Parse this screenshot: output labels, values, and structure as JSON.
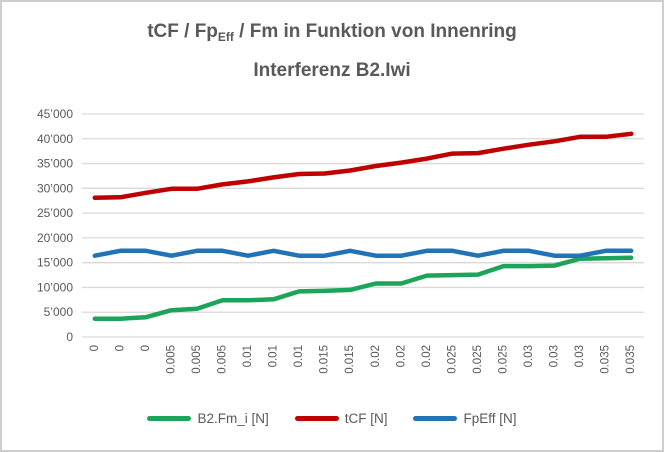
{
  "title": {
    "line1_prefix": "tCF / Fp",
    "line1_subscript": "Eff",
    "line1_suffix": " / Fm in Funktion von Innenring",
    "line2": "Interferenz B2.Iwi"
  },
  "colors": {
    "title_text": "#595959",
    "axis_text": "#595959",
    "gridline": "#d9d9d9",
    "frame_border": "#cdcdcd",
    "background": "#ffffff"
  },
  "chart_data": {
    "type": "line",
    "title": "tCF / FpEff / Fm in Funktion von Innenring Interferenz B2.Iwi",
    "xlabel": "",
    "ylabel": "",
    "ylim": [
      0,
      45000
    ],
    "grid": "horizontal",
    "legend_position": "bottom",
    "y_ticks": {
      "values": [
        0,
        5000,
        10000,
        15000,
        20000,
        25000,
        30000,
        35000,
        40000,
        45000
      ],
      "labels": [
        "0",
        "5’000",
        "10’000",
        "15’000",
        "20’000",
        "25’000",
        "30’000",
        "35’000",
        "40’000",
        "45’000"
      ]
    },
    "categories": [
      "0",
      "0",
      "0",
      "0.005",
      "0.005",
      "0.005",
      "0.01",
      "0.01",
      "0.01",
      "0.015",
      "0.015",
      "0.02",
      "0.02",
      "0.02",
      "0.025",
      "0.025",
      "0.025",
      "0.03",
      "0.03",
      "0.03",
      "0.035",
      "0.035"
    ],
    "series": [
      {
        "key": "b2-fm-i",
        "name": "B2.Fm_i [N]",
        "color": "#1ba45a",
        "values": [
          3700,
          3700,
          4000,
          5400,
          5700,
          7400,
          7400,
          7600,
          9200,
          9300,
          9500,
          10800,
          10800,
          12400,
          12500,
          12600,
          14300,
          14300,
          14400,
          15800,
          15900,
          16000
        ]
      },
      {
        "key": "tcf",
        "name": "tCF [N]",
        "color": "#c00000",
        "values": [
          28100,
          28200,
          29100,
          29900,
          29900,
          30800,
          31400,
          32200,
          32900,
          33000,
          33600,
          34500,
          35200,
          36000,
          37000,
          37100,
          38000,
          38800,
          39500,
          40400,
          40400,
          41000
        ]
      },
      {
        "key": "fpeff",
        "name": "FpEff [N]",
        "color": "#2272b6",
        "values": [
          16400,
          17400,
          17400,
          16400,
          17400,
          17400,
          16400,
          17400,
          16400,
          16400,
          17400,
          16400,
          16400,
          17400,
          17400,
          16400,
          17400,
          17400,
          16400,
          16400,
          17400,
          17400
        ]
      }
    ]
  }
}
